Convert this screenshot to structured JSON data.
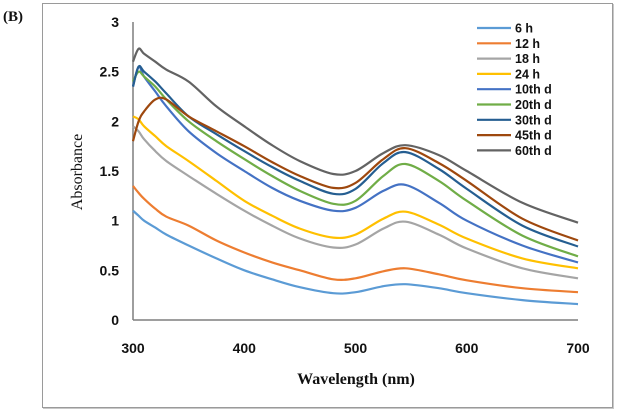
{
  "panel_label": "(B)",
  "chart_data": {
    "type": "line",
    "title": "",
    "xlabel": "Wavelength (nm)",
    "ylabel": "Absorbance",
    "xlim": [
      300,
      700
    ],
    "ylim": [
      0,
      3
    ],
    "xticks": [
      300,
      400,
      500,
      600,
      700
    ],
    "yticks": [
      0,
      0.5,
      1,
      1.5,
      2,
      2.5,
      3
    ],
    "ytick_labels": [
      "0",
      "0.5",
      "1",
      "1.5",
      "2",
      "2.5",
      "3"
    ],
    "xtick_labels": [
      "300",
      "400",
      "500",
      "600",
      "700"
    ],
    "grid": false,
    "legend_position": "top-right",
    "x": [
      300,
      305,
      310,
      320,
      330,
      350,
      375,
      400,
      425,
      450,
      480,
      500,
      525,
      545,
      575,
      600,
      650,
      700
    ],
    "series": [
      {
        "name": "6 h",
        "color": "#5B9BD5",
        "values": [
          1.1,
          1.05,
          1.0,
          0.93,
          0.86,
          0.75,
          0.62,
          0.5,
          0.41,
          0.33,
          0.27,
          0.28,
          0.34,
          0.36,
          0.32,
          0.27,
          0.2,
          0.16
        ]
      },
      {
        "name": "12 h",
        "color": "#ED7D31",
        "values": [
          1.35,
          1.28,
          1.22,
          1.12,
          1.04,
          0.95,
          0.8,
          0.68,
          0.58,
          0.5,
          0.41,
          0.42,
          0.49,
          0.52,
          0.46,
          0.4,
          0.32,
          0.28
        ]
      },
      {
        "name": "18 h",
        "color": "#A5A5A5",
        "values": [
          1.95,
          1.9,
          1.82,
          1.7,
          1.6,
          1.45,
          1.27,
          1.1,
          0.95,
          0.82,
          0.73,
          0.76,
          0.92,
          0.99,
          0.86,
          0.72,
          0.52,
          0.42
        ]
      },
      {
        "name": "24 h",
        "color": "#FFC000",
        "values": [
          2.05,
          2.02,
          1.95,
          1.85,
          1.75,
          1.6,
          1.4,
          1.2,
          1.05,
          0.92,
          0.83,
          0.86,
          1.02,
          1.09,
          0.96,
          0.82,
          0.62,
          0.52
        ]
      },
      {
        "name": "10th d",
        "color": "#4472C4",
        "values": [
          2.35,
          2.55,
          2.45,
          2.3,
          2.15,
          1.9,
          1.68,
          1.5,
          1.33,
          1.2,
          1.1,
          1.13,
          1.3,
          1.36,
          1.18,
          1.0,
          0.75,
          0.58
        ]
      },
      {
        "name": "20th d",
        "color": "#70AD47",
        "values": [
          2.4,
          2.5,
          2.45,
          2.35,
          2.22,
          2.0,
          1.8,
          1.62,
          1.45,
          1.3,
          1.17,
          1.2,
          1.45,
          1.57,
          1.4,
          1.2,
          0.85,
          0.64
        ]
      },
      {
        "name": "30th d",
        "color": "#255E91",
        "values": [
          2.35,
          2.55,
          2.5,
          2.4,
          2.28,
          2.05,
          1.87,
          1.7,
          1.54,
          1.4,
          1.27,
          1.32,
          1.58,
          1.69,
          1.52,
          1.32,
          0.95,
          0.74
        ]
      },
      {
        "name": "45th d",
        "color": "#9E480E",
        "values": [
          1.8,
          2.0,
          2.1,
          2.22,
          2.22,
          2.05,
          1.9,
          1.75,
          1.59,
          1.45,
          1.33,
          1.38,
          1.62,
          1.73,
          1.58,
          1.4,
          1.02,
          0.8
        ]
      },
      {
        "name": "60th d",
        "color": "#636363",
        "values": [
          2.6,
          2.73,
          2.68,
          2.6,
          2.52,
          2.4,
          2.15,
          1.95,
          1.76,
          1.6,
          1.47,
          1.5,
          1.68,
          1.76,
          1.66,
          1.5,
          1.18,
          0.98
        ]
      }
    ]
  }
}
